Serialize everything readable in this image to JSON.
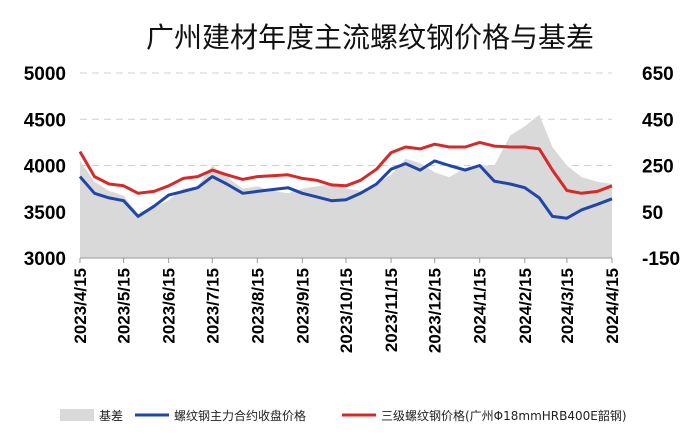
{
  "chart_data": {
    "type": "line",
    "title": "广州建材年度主流螺纹钢价格与基差",
    "x_ticks": [
      "2023/4/15",
      "2023/5/15",
      "2023/6/15",
      "2023/7/15",
      "2023/8/15",
      "2023/9/15",
      "2023/10/15",
      "2023/11/15",
      "2023/12/15",
      "2024/1/15",
      "2024/2/15",
      "2024/3/15",
      "2024/4/15"
    ],
    "y_left": {
      "ticks": [
        "3000",
        "3500",
        "4000",
        "4500",
        "5000"
      ],
      "range": [
        3000,
        5000
      ]
    },
    "y_right": {
      "ticks": [
        "-150",
        "50",
        "250",
        "450",
        "650"
      ],
      "range": [
        -150,
        650
      ]
    },
    "grid": "horizontal-dashed",
    "legend_position": "bottom",
    "colors": {
      "basis": "#d9d9d9",
      "futures": "#2146a8",
      "spot": "#d62a2a"
    },
    "x": [
      "2023/4/15",
      "2023/4/25",
      "2023/5/5",
      "2023/5/15",
      "2023/5/25",
      "2023/6/5",
      "2023/6/15",
      "2023/6/25",
      "2023/7/5",
      "2023/7/15",
      "2023/7/25",
      "2023/8/5",
      "2023/8/15",
      "2023/8/25",
      "2023/9/5",
      "2023/9/15",
      "2023/9/25",
      "2023/10/5",
      "2023/10/15",
      "2023/10/25",
      "2023/11/5",
      "2023/11/15",
      "2023/11/25",
      "2023/12/5",
      "2023/12/15",
      "2023/12/25",
      "2024/1/5",
      "2024/1/15",
      "2024/1/25",
      "2024/2/5",
      "2024/2/15",
      "2024/2/25",
      "2024/3/5",
      "2024/3/15",
      "2024/3/25",
      "2024/4/5",
      "2024/4/15"
    ],
    "series": [
      {
        "name": "基差",
        "axis": "right",
        "type": "area",
        "values": [
          270,
          180,
          140,
          120,
          40,
          70,
          100,
          150,
          160,
          250,
          200,
          150,
          160,
          140,
          130,
          150,
          160,
          170,
          150,
          140,
          170,
          210,
          280,
          260,
          220,
          200,
          240,
          250,
          250,
          380,
          420,
          470,
          330,
          250,
          200,
          180,
          170
        ]
      },
      {
        "name": "螺纹钢主力合约收盘价格",
        "axis": "left",
        "type": "line",
        "values": [
          3880,
          3700,
          3650,
          3620,
          3450,
          3560,
          3680,
          3720,
          3760,
          3880,
          3800,
          3700,
          3720,
          3740,
          3760,
          3700,
          3660,
          3620,
          3630,
          3700,
          3800,
          3960,
          4020,
          3950,
          4050,
          4000,
          3950,
          4000,
          3830,
          3800,
          3760,
          3650,
          3450,
          3430,
          3520,
          3580,
          3640
        ]
      },
      {
        "name": "三级螺纹钢价格(广州Φ18mmHRB400E韶钢)",
        "axis": "left",
        "type": "line",
        "values": [
          4150,
          3880,
          3800,
          3780,
          3700,
          3720,
          3780,
          3860,
          3880,
          3950,
          3900,
          3850,
          3880,
          3890,
          3900,
          3860,
          3840,
          3790,
          3780,
          3840,
          3960,
          4140,
          4200,
          4180,
          4230,
          4200,
          4200,
          4250,
          4210,
          4200,
          4200,
          4180,
          3950,
          3730,
          3700,
          3720,
          3780
        ]
      }
    ]
  }
}
